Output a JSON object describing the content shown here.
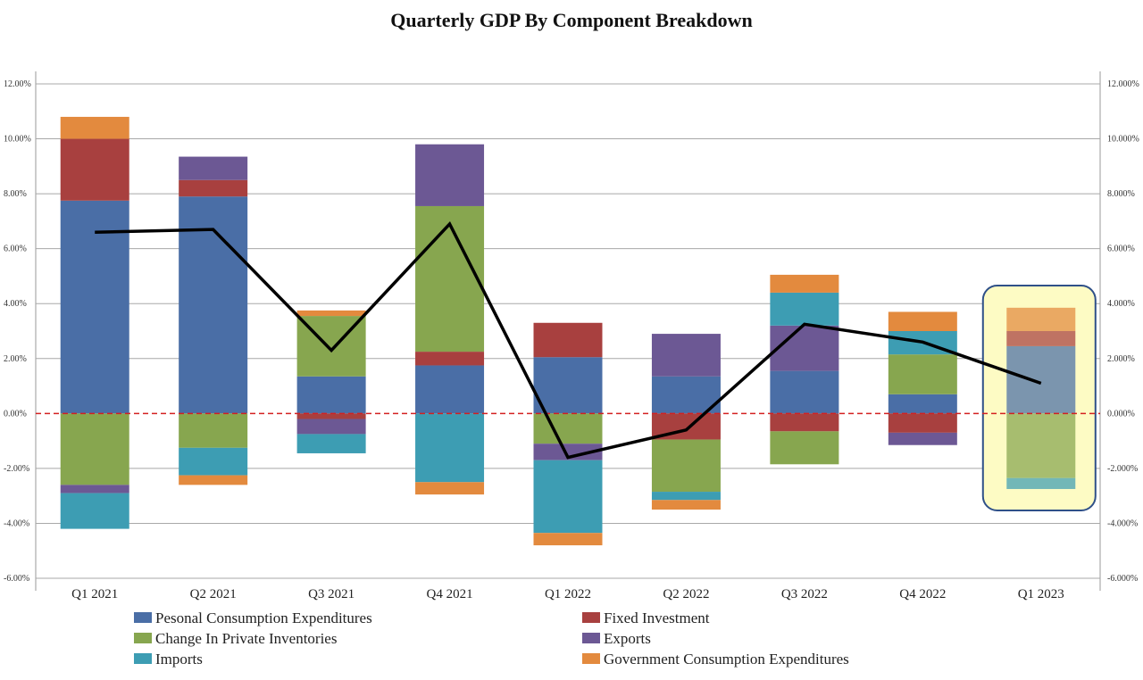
{
  "chart_data": {
    "type": "bar",
    "stacked": true,
    "title": "Quarterly GDP By Component Breakdown",
    "categories": [
      "Q1 2021",
      "Q2 2021",
      "Q3 2021",
      "Q4 2021",
      "Q1 2022",
      "Q2 2022",
      "Q3 2022",
      "Q4 2022",
      "Q1 2023"
    ],
    "ylim": [
      -6,
      12
    ],
    "left_ticks": [
      "12.00%",
      "10.00%",
      "8.00%",
      "6.00%",
      "4.00%",
      "2.00%",
      "0.00%",
      "-2.00%",
      "-4.00%",
      "-6.00%"
    ],
    "right_ticks": [
      "12.000%",
      "10.000%",
      "8.000%",
      "6.000%",
      "4.000%",
      "2.000%",
      "0.000%",
      "-2.000%",
      "-4.000%",
      "-6.000%"
    ],
    "tick_values": [
      12,
      10,
      8,
      6,
      4,
      2,
      0,
      -2,
      -4,
      -6
    ],
    "grid": true,
    "zero_line": {
      "style": "dashed",
      "color": "#d42020"
    },
    "legend_position": "bottom",
    "series": [
      {
        "name": "Pesonal Consumption Expenditures",
        "color": "#4a6ea6",
        "values": [
          7.75,
          7.9,
          1.35,
          1.75,
          2.05,
          1.35,
          1.55,
          0.7,
          2.45
        ]
      },
      {
        "name": "Fixed Investment",
        "color": "#a8403f",
        "values": [
          2.25,
          0.6,
          -0.2,
          0.5,
          1.25,
          -0.95,
          -0.65,
          -0.7,
          0.55
        ]
      },
      {
        "name": "Change In Private Inventories",
        "color": "#87a64f",
        "values": [
          -2.6,
          -1.25,
          2.2,
          5.3,
          -1.1,
          -1.9,
          -1.2,
          1.45,
          -2.35
        ]
      },
      {
        "name": "Exports",
        "color": "#6c5894",
        "values": [
          -0.3,
          0.85,
          -0.55,
          2.25,
          -0.6,
          1.55,
          1.65,
          -0.45,
          0
        ]
      },
      {
        "name": "Imports",
        "color": "#3d9db3",
        "values": [
          -1.3,
          -1.0,
          -0.7,
          -2.5,
          -2.65,
          -0.3,
          1.2,
          0.85,
          -0.4
        ]
      },
      {
        "name": "Government Consumption Expenditures",
        "color": "#e38a3e",
        "values": [
          0.8,
          -0.35,
          0.2,
          -0.45,
          -0.45,
          -0.35,
          0.65,
          0.7,
          0.85
        ]
      }
    ],
    "line": {
      "color": "#000000",
      "values": [
        6.6,
        6.7,
        2.3,
        6.9,
        -1.6,
        -0.6,
        3.25,
        2.6,
        1.1
      ]
    },
    "highlight": {
      "category": "Q1 2023",
      "fill": "#fdfbc4",
      "border": "#2f5088"
    }
  }
}
